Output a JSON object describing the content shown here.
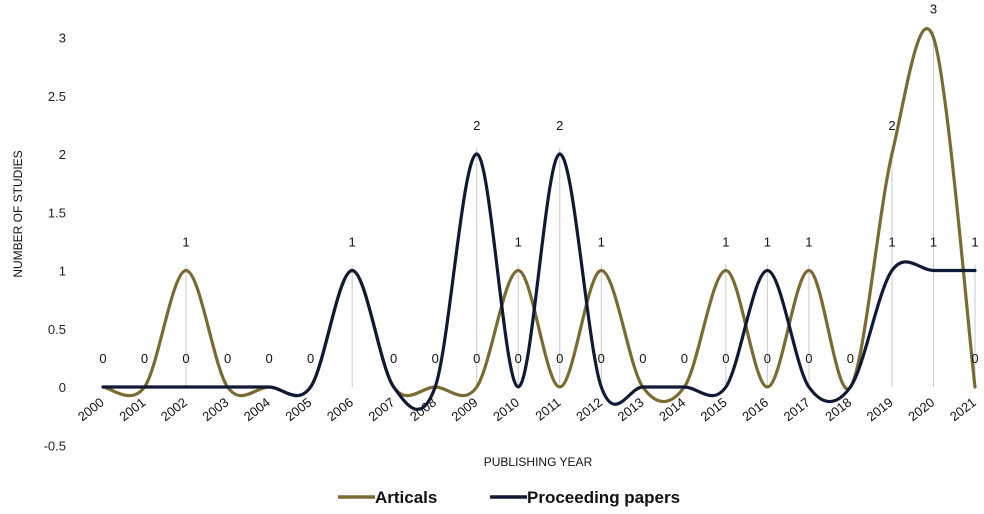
{
  "chart_data": {
    "type": "line",
    "title": "",
    "xlabel": "PUBLISHING YEAR",
    "ylabel": "NUMBER OF STUDIES",
    "ylim": [
      -0.5,
      3
    ],
    "yticks": [
      "-0.5",
      "0",
      "0.5",
      "1",
      "1.5",
      "2",
      "2.5",
      "3"
    ],
    "x": [
      "2000",
      "2001",
      "2002",
      "2003",
      "2004",
      "2005",
      "2006",
      "2007",
      "2008",
      "2009",
      "2010",
      "2011",
      "2012",
      "2013",
      "2014",
      "2015",
      "2016",
      "2017",
      "2018",
      "2019",
      "2020",
      "2021"
    ],
    "smooth": true,
    "grid": false,
    "legend_position": "bottom",
    "series": [
      {
        "name": "Articals",
        "color": "#7b6a32",
        "values": [
          0,
          0,
          1,
          0,
          0,
          0,
          1,
          0,
          0,
          0,
          1,
          0,
          1,
          0,
          0,
          1,
          0,
          1,
          0,
          2,
          3,
          0
        ]
      },
      {
        "name": "Proceeding papers",
        "color": "#0f1a36",
        "values": [
          0,
          0,
          0,
          0,
          0,
          0,
          1,
          0,
          0,
          2,
          0,
          2,
          0,
          0,
          0,
          0,
          1,
          0,
          0,
          1,
          1,
          1
        ]
      }
    ]
  }
}
